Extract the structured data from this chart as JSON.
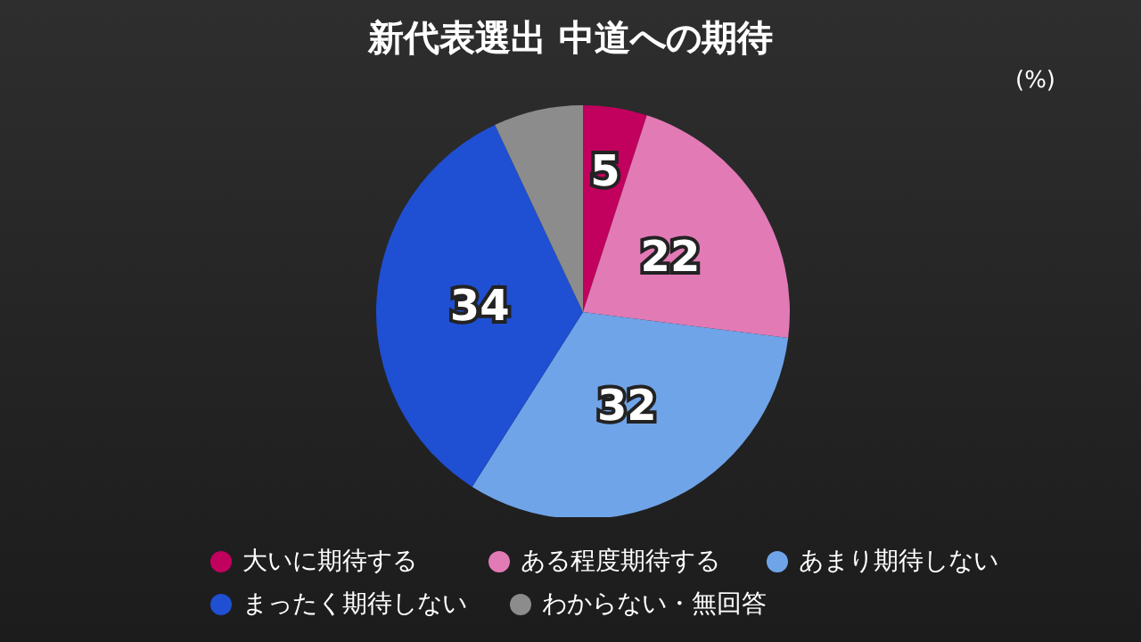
{
  "chart_data": {
    "type": "pie",
    "title": "新代表選出 中道への期待",
    "annotations": [
      "(%)"
    ],
    "categories": [
      "大いに期待する",
      "ある程度期待する",
      "あまり期待しない",
      "まったく期待しない",
      "わからない・無回答"
    ],
    "values": [
      5,
      22,
      32,
      34,
      7
    ],
    "value_labels": [
      "5",
      "22",
      "32",
      "34",
      null
    ],
    "colors": [
      "#c2005e",
      "#e27ab6",
      "#70a4e8",
      "#1f4fd2",
      "#8c8c8c"
    ],
    "legend": "bottom"
  }
}
